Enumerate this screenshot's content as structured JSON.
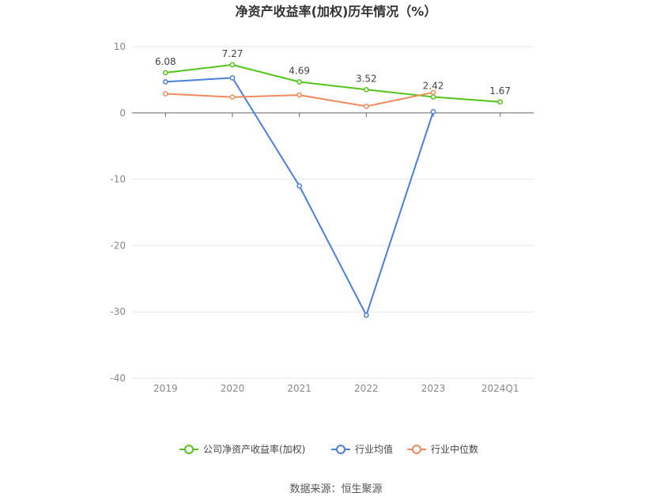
{
  "chart_data": {
    "type": "line",
    "title": "净资产收益率(加权)历年情况（%）",
    "categories": [
      "2019",
      "2020",
      "2021",
      "2022",
      "2023",
      "2024Q1"
    ],
    "ylim": [
      -40,
      10
    ],
    "yticks": [
      10,
      0,
      -10,
      -20,
      -30,
      -40
    ],
    "grid": true,
    "legend_position": "bottom",
    "series": [
      {
        "name": "公司净资产收益率(加权)",
        "color": "#52c41a",
        "values": [
          6.08,
          7.27,
          4.69,
          3.52,
          2.42,
          1.67
        ],
        "labels": [
          "6.08",
          "7.27",
          "4.69",
          "3.52",
          "2.42",
          "1.67"
        ]
      },
      {
        "name": "行业均值",
        "color": "#4a7fe0",
        "values": [
          4.7,
          5.3,
          -11.0,
          -30.5,
          0.2,
          null
        ]
      },
      {
        "name": "行业中位数",
        "color": "#f08a5d",
        "values": [
          2.9,
          2.4,
          2.7,
          1.0,
          3.1,
          null
        ]
      }
    ]
  },
  "source": "数据来源：恒生聚源"
}
